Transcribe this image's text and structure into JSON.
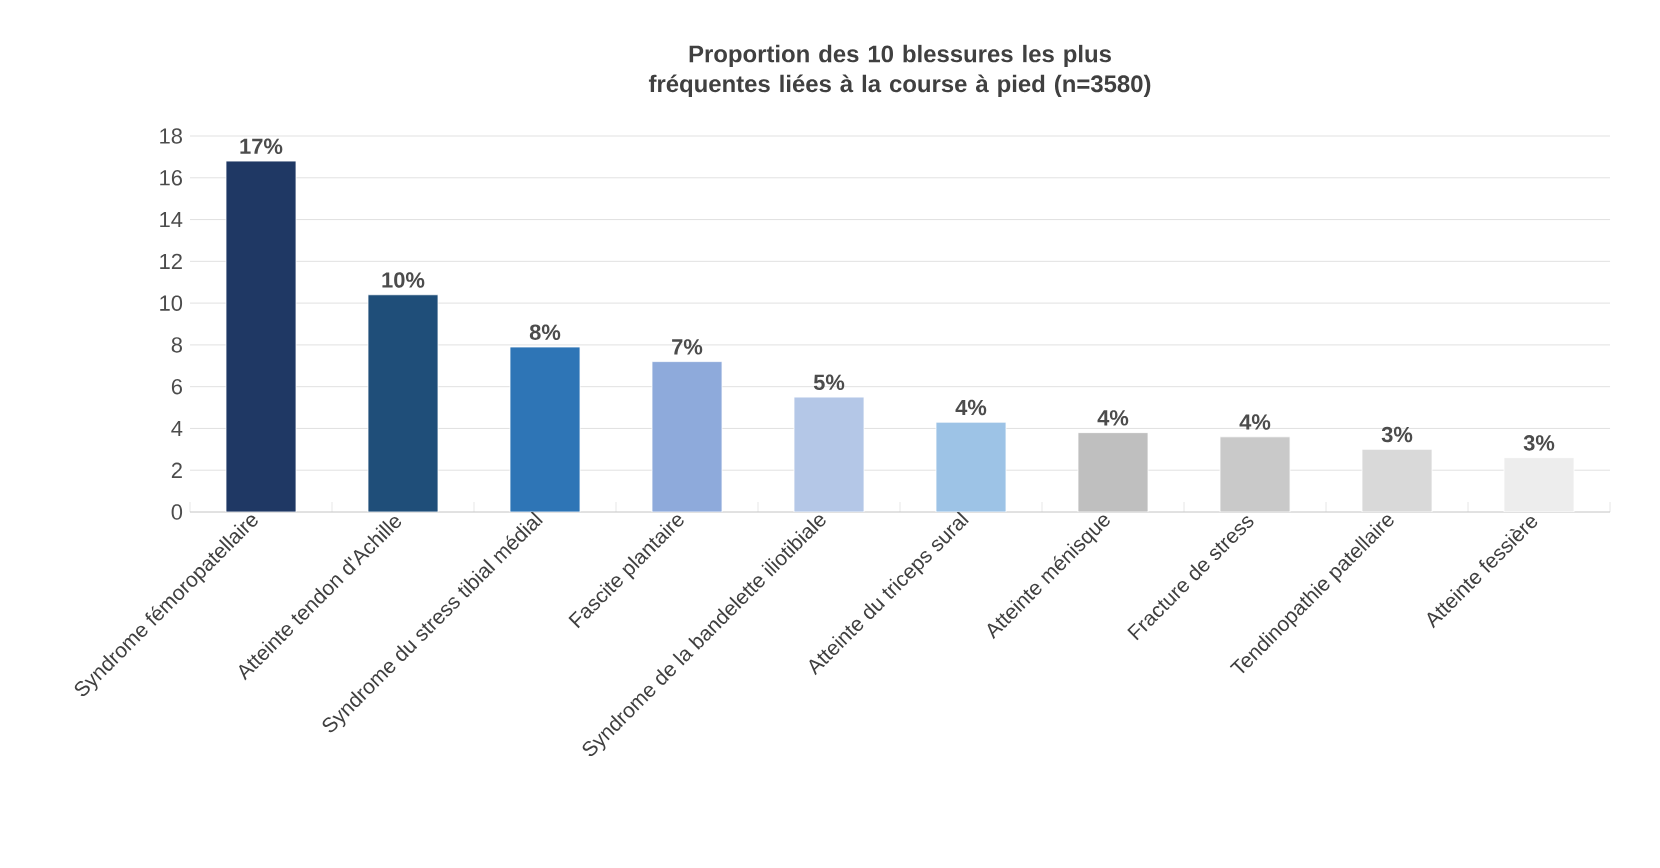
{
  "chart_data": {
    "type": "bar",
    "title": "Proportion des 10 blessures les plus fréquentes liées à la course à pied (n=3580)",
    "categories": [
      "Syndrome fémoropatellaire",
      "Atteinte tendon d'Achille",
      "Syndrome du stress tibial médial",
      "Fascite plantaire",
      "Syndrome de la bandelette iliotibiale",
      "Atteinte du triceps sural",
      "Atteinte ménisque",
      "Fracture de stress",
      "Tendinopathie patellaire",
      "Atteinte fessière"
    ],
    "values": [
      16.8,
      10.4,
      7.9,
      7.2,
      5.5,
      4.3,
      3.8,
      3.6,
      3.0,
      2.6
    ],
    "colors": [
      "#1f3864",
      "#1f4e79",
      "#2e75b6",
      "#8eaadb",
      "#b4c7e7",
      "#9dc3e6",
      "#bfbfbf",
      "#c9c9c9",
      "#d9d9d9",
      "#ededed"
    ],
    "value_labels": [
      "17%",
      "10%",
      "8%",
      "7%",
      "5%",
      "4%",
      "4%",
      "4%",
      "3%",
      "3%"
    ],
    "ylim": [
      0,
      18
    ],
    "yticks": [
      0,
      2,
      4,
      6,
      8,
      10,
      12,
      14,
      16,
      18
    ],
    "grid": "y"
  }
}
